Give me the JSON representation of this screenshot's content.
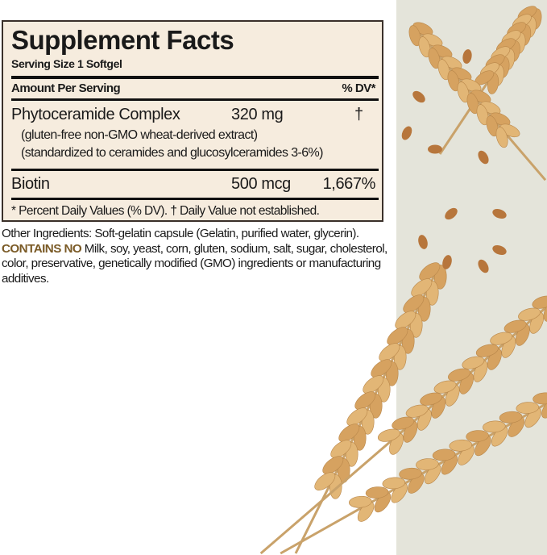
{
  "label": {
    "title": "Supplement Facts",
    "serving_size": "Serving Size 1 Softgel",
    "amount_header": "Amount Per Serving",
    "dv_header": "% DV*",
    "rows": [
      {
        "name": "Phytoceramide Complex",
        "amount": "320 mg",
        "dv": "†",
        "notes": [
          "(gluten-free non-GMO wheat-derived extract)",
          "(standardized to ceramides and glucosylceramides 3-6%)"
        ]
      },
      {
        "name": "Biotin",
        "amount": "500 mcg",
        "dv": "1,667%"
      }
    ],
    "footnote": "* Percent Daily Values (% DV). † Daily Value not established."
  },
  "other_ingredients": "Other Ingredients: Soft-gelatin capsule (Gelatin, purified water, glycerin).",
  "contains_no_label": "CONTAINS NO",
  "contains_no_text": " Milk, soy, yeast, corn, gluten, sodium, salt, sugar, cholesterol, color, preservative, genetically modified (GMO) ingredients or manufacturing additives.",
  "colors": {
    "label_bg": "#f6ecde",
    "panel_bg": "#e4e4da",
    "contains_no": "#7a5a26",
    "wheat": "#d9a866"
  }
}
